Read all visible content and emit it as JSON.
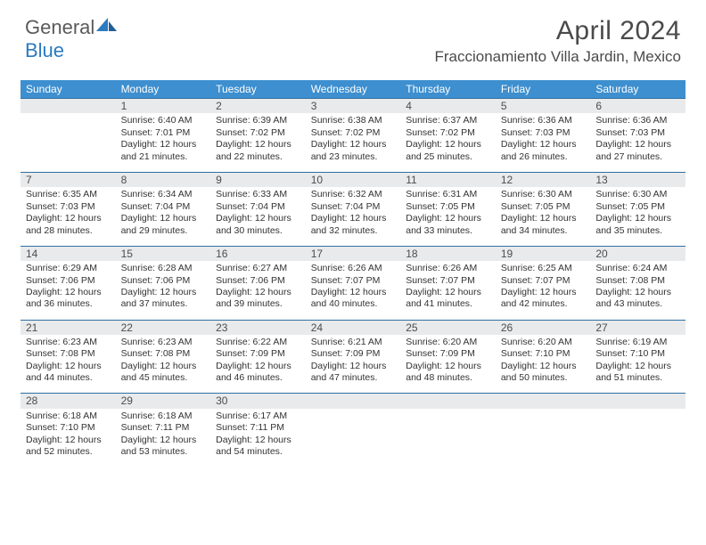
{
  "brand": {
    "part1": "General",
    "part2": "Blue"
  },
  "title": "April 2024",
  "location": "Fraccionamiento Villa Jardin, Mexico",
  "colors": {
    "header_bg": "#3d8fcf",
    "header_text": "#ffffff",
    "daynum_bg": "#e8eaec",
    "daynum_border": "#2f6fa3",
    "body_text": "#333333",
    "brand_gray": "#5a5a5a",
    "brand_blue": "#2b7bbf"
  },
  "weekdays": [
    "Sunday",
    "Monday",
    "Tuesday",
    "Wednesday",
    "Thursday",
    "Friday",
    "Saturday"
  ],
  "weeks": [
    {
      "nums": [
        "",
        "1",
        "2",
        "3",
        "4",
        "5",
        "6"
      ],
      "cells": [
        null,
        {
          "sr": "Sunrise: 6:40 AM",
          "ss": "Sunset: 7:01 PM",
          "d1": "Daylight: 12 hours",
          "d2": "and 21 minutes."
        },
        {
          "sr": "Sunrise: 6:39 AM",
          "ss": "Sunset: 7:02 PM",
          "d1": "Daylight: 12 hours",
          "d2": "and 22 minutes."
        },
        {
          "sr": "Sunrise: 6:38 AM",
          "ss": "Sunset: 7:02 PM",
          "d1": "Daylight: 12 hours",
          "d2": "and 23 minutes."
        },
        {
          "sr": "Sunrise: 6:37 AM",
          "ss": "Sunset: 7:02 PM",
          "d1": "Daylight: 12 hours",
          "d2": "and 25 minutes."
        },
        {
          "sr": "Sunrise: 6:36 AM",
          "ss": "Sunset: 7:03 PM",
          "d1": "Daylight: 12 hours",
          "d2": "and 26 minutes."
        },
        {
          "sr": "Sunrise: 6:36 AM",
          "ss": "Sunset: 7:03 PM",
          "d1": "Daylight: 12 hours",
          "d2": "and 27 minutes."
        }
      ]
    },
    {
      "nums": [
        "7",
        "8",
        "9",
        "10",
        "11",
        "12",
        "13"
      ],
      "cells": [
        {
          "sr": "Sunrise: 6:35 AM",
          "ss": "Sunset: 7:03 PM",
          "d1": "Daylight: 12 hours",
          "d2": "and 28 minutes."
        },
        {
          "sr": "Sunrise: 6:34 AM",
          "ss": "Sunset: 7:04 PM",
          "d1": "Daylight: 12 hours",
          "d2": "and 29 minutes."
        },
        {
          "sr": "Sunrise: 6:33 AM",
          "ss": "Sunset: 7:04 PM",
          "d1": "Daylight: 12 hours",
          "d2": "and 30 minutes."
        },
        {
          "sr": "Sunrise: 6:32 AM",
          "ss": "Sunset: 7:04 PM",
          "d1": "Daylight: 12 hours",
          "d2": "and 32 minutes."
        },
        {
          "sr": "Sunrise: 6:31 AM",
          "ss": "Sunset: 7:05 PM",
          "d1": "Daylight: 12 hours",
          "d2": "and 33 minutes."
        },
        {
          "sr": "Sunrise: 6:30 AM",
          "ss": "Sunset: 7:05 PM",
          "d1": "Daylight: 12 hours",
          "d2": "and 34 minutes."
        },
        {
          "sr": "Sunrise: 6:30 AM",
          "ss": "Sunset: 7:05 PM",
          "d1": "Daylight: 12 hours",
          "d2": "and 35 minutes."
        }
      ]
    },
    {
      "nums": [
        "14",
        "15",
        "16",
        "17",
        "18",
        "19",
        "20"
      ],
      "cells": [
        {
          "sr": "Sunrise: 6:29 AM",
          "ss": "Sunset: 7:06 PM",
          "d1": "Daylight: 12 hours",
          "d2": "and 36 minutes."
        },
        {
          "sr": "Sunrise: 6:28 AM",
          "ss": "Sunset: 7:06 PM",
          "d1": "Daylight: 12 hours",
          "d2": "and 37 minutes."
        },
        {
          "sr": "Sunrise: 6:27 AM",
          "ss": "Sunset: 7:06 PM",
          "d1": "Daylight: 12 hours",
          "d2": "and 39 minutes."
        },
        {
          "sr": "Sunrise: 6:26 AM",
          "ss": "Sunset: 7:07 PM",
          "d1": "Daylight: 12 hours",
          "d2": "and 40 minutes."
        },
        {
          "sr": "Sunrise: 6:26 AM",
          "ss": "Sunset: 7:07 PM",
          "d1": "Daylight: 12 hours",
          "d2": "and 41 minutes."
        },
        {
          "sr": "Sunrise: 6:25 AM",
          "ss": "Sunset: 7:07 PM",
          "d1": "Daylight: 12 hours",
          "d2": "and 42 minutes."
        },
        {
          "sr": "Sunrise: 6:24 AM",
          "ss": "Sunset: 7:08 PM",
          "d1": "Daylight: 12 hours",
          "d2": "and 43 minutes."
        }
      ]
    },
    {
      "nums": [
        "21",
        "22",
        "23",
        "24",
        "25",
        "26",
        "27"
      ],
      "cells": [
        {
          "sr": "Sunrise: 6:23 AM",
          "ss": "Sunset: 7:08 PM",
          "d1": "Daylight: 12 hours",
          "d2": "and 44 minutes."
        },
        {
          "sr": "Sunrise: 6:23 AM",
          "ss": "Sunset: 7:08 PM",
          "d1": "Daylight: 12 hours",
          "d2": "and 45 minutes."
        },
        {
          "sr": "Sunrise: 6:22 AM",
          "ss": "Sunset: 7:09 PM",
          "d1": "Daylight: 12 hours",
          "d2": "and 46 minutes."
        },
        {
          "sr": "Sunrise: 6:21 AM",
          "ss": "Sunset: 7:09 PM",
          "d1": "Daylight: 12 hours",
          "d2": "and 47 minutes."
        },
        {
          "sr": "Sunrise: 6:20 AM",
          "ss": "Sunset: 7:09 PM",
          "d1": "Daylight: 12 hours",
          "d2": "and 48 minutes."
        },
        {
          "sr": "Sunrise: 6:20 AM",
          "ss": "Sunset: 7:10 PM",
          "d1": "Daylight: 12 hours",
          "d2": "and 50 minutes."
        },
        {
          "sr": "Sunrise: 6:19 AM",
          "ss": "Sunset: 7:10 PM",
          "d1": "Daylight: 12 hours",
          "d2": "and 51 minutes."
        }
      ]
    },
    {
      "nums": [
        "28",
        "29",
        "30",
        "",
        "",
        "",
        ""
      ],
      "cells": [
        {
          "sr": "Sunrise: 6:18 AM",
          "ss": "Sunset: 7:10 PM",
          "d1": "Daylight: 12 hours",
          "d2": "and 52 minutes."
        },
        {
          "sr": "Sunrise: 6:18 AM",
          "ss": "Sunset: 7:11 PM",
          "d1": "Daylight: 12 hours",
          "d2": "and 53 minutes."
        },
        {
          "sr": "Sunrise: 6:17 AM",
          "ss": "Sunset: 7:11 PM",
          "d1": "Daylight: 12 hours",
          "d2": "and 54 minutes."
        },
        null,
        null,
        null,
        null
      ]
    }
  ]
}
